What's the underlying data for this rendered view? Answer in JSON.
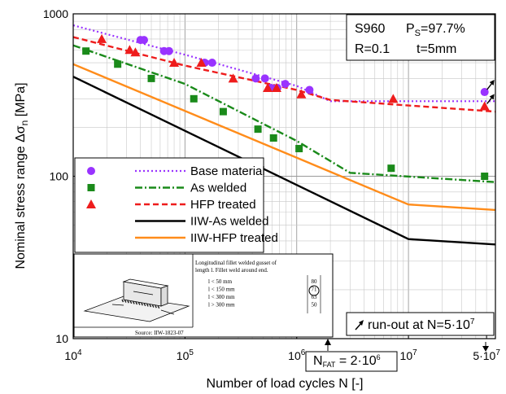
{
  "chart_data": {
    "type": "scatter",
    "xlabel": "Number of load cycles N [-]",
    "ylabel": "Nominal stress range Δσ",
    "ylabel_sub": "n",
    "ylabel_unit": " [MPa]",
    "xscale": "log",
    "yscale": "log",
    "xlim": [
      10000,
      60000000
    ],
    "ylim": [
      10,
      1000
    ],
    "grid": true,
    "x_ticks": [
      {
        "base": "10",
        "exp": "4"
      },
      {
        "base": "10",
        "exp": "5"
      },
      {
        "base": "10",
        "exp": "6"
      },
      {
        "base": "10",
        "exp": "7"
      },
      {
        "base": "5·10",
        "exp": "7"
      }
    ],
    "y_ticks": [
      "10",
      "100",
      "1000"
    ],
    "info_box": {
      "material": "S960",
      "ps_label": "P",
      "ps_sub": "S",
      "ps_value": "=97.7%",
      "r_value": "R=0.1",
      "t_value": "t=5mm"
    },
    "runout_note": "run-out at N=5·10",
    "runout_exp": "7",
    "nfat_label": "N",
    "nfat_sub": "FAT",
    "nfat_value": " = 2·10",
    "nfat_exp": "6",
    "inset": {
      "source": "Source: IIW-1823-07",
      "desc_line1": "Longitudinal fillet welded gusset of",
      "desc_line2": "length l. Fillet weld around end.",
      "rows": [
        {
          "cond": "l < 50 mm",
          "fat": "80"
        },
        {
          "cond": "l < 150 mm",
          "fat": "71"
        },
        {
          "cond": "l < 300 mm",
          "fat": "63"
        },
        {
          "cond": "l > 300 mm",
          "fat": "50"
        }
      ]
    },
    "series": [
      {
        "name": "Base material",
        "kind": "points",
        "marker": "circle",
        "color": "#9933ff",
        "points": [
          [
            40000,
            690
          ],
          [
            43000,
            690
          ],
          [
            65000,
            590
          ],
          [
            72000,
            590
          ],
          [
            150000,
            500
          ],
          [
            175000,
            500
          ],
          [
            430000,
            400
          ],
          [
            520000,
            400
          ],
          [
            590000,
            350
          ],
          [
            670000,
            350
          ],
          [
            790000,
            370
          ],
          [
            1300000,
            340
          ],
          [
            48000000,
            330
          ]
        ]
      },
      {
        "name": "Base material fit",
        "kind": "line",
        "style": "dotted",
        "color": "#9933ff",
        "points": [
          [
            10000,
            850
          ],
          [
            100000,
            560
          ],
          [
            1000000,
            360
          ],
          [
            2000000,
            290
          ],
          [
            60000000,
            290
          ]
        ]
      },
      {
        "name": "As welded",
        "kind": "points",
        "marker": "square",
        "color": "#1a8a1a",
        "points": [
          [
            13000,
            590
          ],
          [
            25000,
            490
          ],
          [
            50000,
            400
          ],
          [
            120000,
            300
          ],
          [
            220000,
            250
          ],
          [
            450000,
            195
          ],
          [
            620000,
            172
          ],
          [
            1050000,
            148
          ],
          [
            7000000,
            112
          ],
          [
            48000000,
            100
          ]
        ]
      },
      {
        "name": "As welded fit",
        "kind": "line",
        "style": "dashdot",
        "color": "#1a8a1a",
        "points": [
          [
            10000,
            640
          ],
          [
            100000,
            370
          ],
          [
            1000000,
            165
          ],
          [
            3000000,
            105
          ],
          [
            60000000,
            92
          ]
        ]
      },
      {
        "name": "HFP treated",
        "kind": "points",
        "marker": "triangle",
        "color": "#ee1c1c",
        "points": [
          [
            18000,
            700
          ],
          [
            32000,
            600
          ],
          [
            36000,
            580
          ],
          [
            80000,
            500
          ],
          [
            140000,
            500
          ],
          [
            270000,
            400
          ],
          [
            550000,
            350
          ],
          [
            660000,
            350
          ],
          [
            1100000,
            320
          ],
          [
            7300000,
            300
          ],
          [
            48000000,
            270
          ]
        ]
      },
      {
        "name": "HFP treated fit",
        "kind": "line",
        "style": "dashed",
        "color": "#ee1c1c",
        "points": [
          [
            10000,
            720
          ],
          [
            100000,
            480
          ],
          [
            1000000,
            340
          ],
          [
            2000000,
            295
          ],
          [
            60000000,
            250
          ]
        ]
      },
      {
        "name": "IIW-As welded",
        "kind": "line",
        "style": "solid",
        "color": "#000000",
        "points": [
          [
            10000,
            410
          ],
          [
            10000000,
            41
          ],
          [
            60000000,
            38
          ]
        ]
      },
      {
        "name": "IIW-HFP treated",
        "kind": "line",
        "style": "solid",
        "color": "#ff8c1a",
        "points": [
          [
            10000,
            490
          ],
          [
            10000000,
            67
          ],
          [
            60000000,
            62
          ]
        ]
      }
    ],
    "legend": [
      {
        "label": "Base material",
        "marker": "circle",
        "line": "dotted",
        "color": "#9933ff"
      },
      {
        "label": "As welded",
        "marker": "square",
        "line": "dashdot",
        "color": "#1a8a1a"
      },
      {
        "label": "HFP treated",
        "marker": "triangle",
        "line": "dashed",
        "color": "#ee1c1c"
      },
      {
        "label": "IIW-As welded",
        "marker": "",
        "line": "solid",
        "color": "#000000"
      },
      {
        "label": "IIW-HFP treated",
        "marker": "",
        "line": "solid",
        "color": "#ff8c1a"
      }
    ],
    "runouts_at_x": 48000000,
    "runout_y": [
      330,
      270
    ]
  }
}
